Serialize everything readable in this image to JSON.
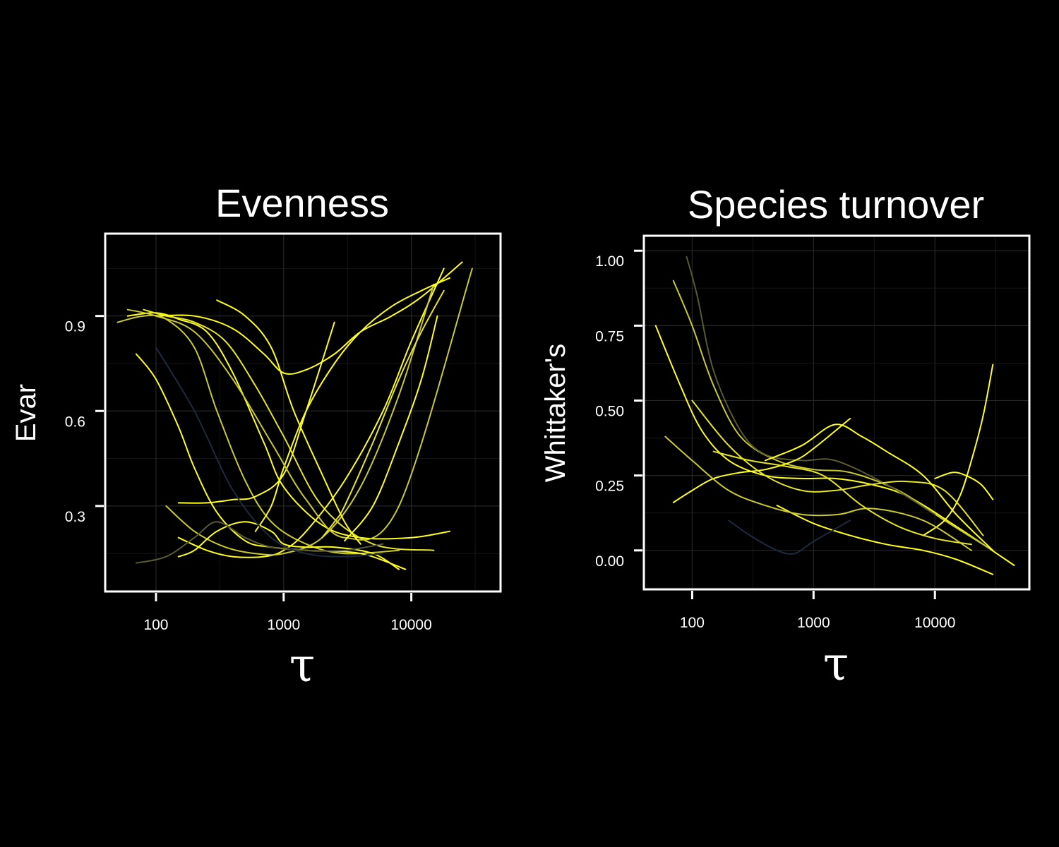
{
  "palette": {
    "background": "#000000",
    "foreground": "#ffffff",
    "curve_bright": "#ffff1a",
    "curve_olive": "#c9c932",
    "curve_dark": "#5a5a32",
    "curve_navy": "#1e2a3e"
  },
  "chart_data": [
    {
      "type": "line",
      "title": "Evenness",
      "xlabel": "τ",
      "ylabel": "Evar",
      "x_scale": "log10",
      "xlim": [
        40,
        50000
      ],
      "ylim": [
        0.03,
        1.16
      ],
      "x_ticks": [
        100,
        1000,
        10000
      ],
      "x_tick_labels": [
        "100",
        "1000",
        "10000"
      ],
      "y_ticks": [
        0.3,
        0.6,
        0.9
      ],
      "y_tick_labels": [
        "0.3",
        "0.6",
        "0.9"
      ],
      "grid": true,
      "legend": "none",
      "series_description": "~150 smoothed curves coloured on a navy-to-yellow gradient; estimated representative data shown",
      "series": [
        {
          "color": "#ffff1a",
          "x": [
            60,
            100,
            150,
            250,
            400,
            700,
            1000,
            2000,
            4000,
            10000,
            20000
          ],
          "y": [
            0.9,
            0.91,
            0.89,
            0.85,
            0.72,
            0.5,
            0.36,
            0.24,
            0.2,
            0.2,
            0.22
          ]
        },
        {
          "color": "#c9c932",
          "x": [
            50,
            80,
            120,
            200,
            300,
            500,
            800,
            1500,
            3000,
            8000
          ],
          "y": [
            0.88,
            0.9,
            0.89,
            0.8,
            0.6,
            0.38,
            0.25,
            0.18,
            0.15,
            0.16
          ]
        },
        {
          "color": "#ffff1a",
          "x": [
            70,
            100,
            150,
            200,
            300,
            500,
            800,
            1500,
            4000,
            9000
          ],
          "y": [
            0.78,
            0.7,
            0.55,
            0.42,
            0.28,
            0.19,
            0.17,
            0.16,
            0.15,
            0.1
          ]
        },
        {
          "color": "#e6e625",
          "x": [
            80,
            120,
            200,
            350,
            600,
            1000,
            2000,
            5000,
            15000
          ],
          "y": [
            0.92,
            0.9,
            0.88,
            0.82,
            0.68,
            0.52,
            0.3,
            0.18,
            0.16
          ]
        },
        {
          "color": "#ffff1a",
          "x": [
            100,
            200,
            400,
            700,
            1000,
            1500,
            2500,
            4000,
            7000,
            12000,
            25000
          ],
          "y": [
            0.9,
            0.9,
            0.86,
            0.78,
            0.72,
            0.73,
            0.78,
            0.85,
            0.9,
            0.96,
            1.07
          ]
        },
        {
          "color": "#ffff1a",
          "x": [
            150,
            250,
            400,
            700,
            1000,
            1500,
            3000,
            6000,
            10000,
            18000
          ],
          "y": [
            0.2,
            0.16,
            0.14,
            0.14,
            0.16,
            0.22,
            0.38,
            0.6,
            0.82,
            1.05
          ]
        },
        {
          "color": "#c9c932",
          "x": [
            120,
            200,
            350,
            600,
            1000,
            2000,
            4000,
            8000,
            15000
          ],
          "y": [
            0.3,
            0.22,
            0.17,
            0.15,
            0.15,
            0.2,
            0.36,
            0.65,
            1.0
          ]
        },
        {
          "color": "#ffff1a",
          "x": [
            150,
            200,
            300,
            500,
            800,
            1000,
            1500,
            2500,
            5000,
            8000
          ],
          "y": [
            0.14,
            0.16,
            0.22,
            0.25,
            0.22,
            0.18,
            0.17,
            0.17,
            0.15,
            0.1
          ]
        },
        {
          "color": "#5a5a32",
          "x": [
            70,
            120,
            200,
            300,
            500,
            800,
            1500,
            3000,
            6000
          ],
          "y": [
            0.12,
            0.14,
            0.2,
            0.25,
            0.2,
            0.17,
            0.16,
            0.16,
            0.18
          ]
        },
        {
          "color": "#ffff1a",
          "x": [
            600,
            800,
            1000,
            1500,
            2500,
            4000,
            7000,
            12000,
            20000
          ],
          "y": [
            0.22,
            0.3,
            0.42,
            0.6,
            0.75,
            0.85,
            0.93,
            0.98,
            1.02
          ]
        },
        {
          "color": "#e6e625",
          "x": [
            2000,
            2500,
            3000,
            5000,
            8000,
            12000,
            18000
          ],
          "y": [
            0.2,
            0.25,
            0.3,
            0.5,
            0.7,
            0.85,
            0.98
          ]
        },
        {
          "color": "#ffff1a",
          "x": [
            150,
            250,
            400,
            600,
            1000,
            1500,
            2500
          ],
          "y": [
            0.31,
            0.31,
            0.32,
            0.33,
            0.4,
            0.6,
            0.88
          ]
        },
        {
          "color": "#1e2a3e",
          "x": [
            100,
            200,
            400,
            800,
            1500,
            3000,
            6000
          ],
          "y": [
            0.8,
            0.6,
            0.35,
            0.2,
            0.15,
            0.14,
            0.15
          ]
        },
        {
          "color": "#c9c932",
          "x": [
            60,
            100,
            200,
            400,
            800,
            1500,
            3000,
            8000,
            30000
          ],
          "y": [
            0.92,
            0.9,
            0.85,
            0.7,
            0.5,
            0.32,
            0.2,
            0.3,
            1.05
          ]
        },
        {
          "color": "#ffff1a",
          "x": [
            300,
            500,
            800,
            1200,
            2000,
            3000,
            4000
          ],
          "y": [
            0.95,
            0.9,
            0.8,
            0.6,
            0.4,
            0.25,
            0.18
          ]
        },
        {
          "color": "#ffff1a",
          "x": [
            3000,
            5000,
            8000,
            12000,
            16000
          ],
          "y": [
            0.19,
            0.3,
            0.5,
            0.7,
            0.9
          ]
        }
      ]
    },
    {
      "type": "line",
      "title": "Species turnover",
      "xlabel": "τ",
      "ylabel": "Whittaker's",
      "x_scale": "log10",
      "xlim": [
        40,
        60000
      ],
      "ylim": [
        -0.13,
        1.05
      ],
      "x_ticks": [
        100,
        1000,
        10000
      ],
      "x_tick_labels": [
        "100",
        "1000",
        "10000"
      ],
      "y_ticks": [
        0.0,
        0.25,
        0.5,
        0.75,
        1.0
      ],
      "y_tick_labels": [
        "0.00",
        "0.25",
        "0.50",
        "0.75",
        "1.00"
      ],
      "grid": true,
      "legend": "none",
      "series_description": "~150 smoothed curves coloured on a navy-to-yellow gradient; estimated representative data shown",
      "series": [
        {
          "color": "#ffff1a",
          "x": [
            50,
            80,
            120,
            200,
            400,
            800,
            1500,
            3000,
            6000,
            15000,
            45000
          ],
          "y": [
            0.75,
            0.55,
            0.4,
            0.3,
            0.25,
            0.24,
            0.24,
            0.22,
            0.18,
            0.08,
            -0.05
          ]
        },
        {
          "color": "#c9c932",
          "x": [
            70,
            100,
            150,
            250,
            500,
            1000,
            2000,
            5000,
            12000,
            30000
          ],
          "y": [
            0.9,
            0.75,
            0.55,
            0.38,
            0.3,
            0.27,
            0.26,
            0.2,
            0.1,
            0.0
          ]
        },
        {
          "color": "#5a5a32",
          "x": [
            90,
            110,
            150,
            250,
            400,
            800,
            1500,
            4000,
            10000
          ],
          "y": [
            0.98,
            0.85,
            0.6,
            0.4,
            0.32,
            0.3,
            0.3,
            0.22,
            0.12
          ]
        },
        {
          "color": "#ffff1a",
          "x": [
            70,
            100,
            150,
            250,
            400,
            700,
            1000,
            2000
          ],
          "y": [
            0.16,
            0.2,
            0.24,
            0.26,
            0.27,
            0.3,
            0.34,
            0.44
          ]
        },
        {
          "color": "#ffff1a",
          "x": [
            8000,
            12000,
            16000,
            20000,
            25000,
            30000
          ],
          "y": [
            0.05,
            0.1,
            0.18,
            0.3,
            0.45,
            0.62
          ]
        },
        {
          "color": "#ffff1a",
          "x": [
            500,
            1000,
            2000,
            4000,
            8000,
            15000,
            30000
          ],
          "y": [
            0.15,
            0.09,
            0.05,
            0.02,
            0.0,
            -0.03,
            -0.08
          ]
        },
        {
          "color": "#e6e625",
          "x": [
            100,
            200,
            400,
            800,
            1500,
            3000,
            6000,
            12000,
            25000
          ],
          "y": [
            0.5,
            0.35,
            0.25,
            0.2,
            0.2,
            0.22,
            0.23,
            0.2,
            0.05
          ]
        },
        {
          "color": "#1e2a3e",
          "x": [
            200,
            300,
            500,
            700,
            1000,
            2000
          ],
          "y": [
            0.1,
            0.05,
            0.0,
            -0.01,
            0.03,
            0.1
          ]
        },
        {
          "color": "#c9c932",
          "x": [
            60,
            100,
            200,
            400,
            800,
            1600,
            3000,
            8000,
            20000
          ],
          "y": [
            0.38,
            0.3,
            0.2,
            0.15,
            0.12,
            0.12,
            0.14,
            0.1,
            0.0
          ]
        },
        {
          "color": "#ffff1a",
          "x": [
            400,
            800,
            1500,
            2500,
            4000,
            8000,
            15000,
            30000
          ],
          "y": [
            0.3,
            0.35,
            0.42,
            0.38,
            0.33,
            0.25,
            0.12,
            0.0
          ]
        },
        {
          "color": "#e6e625",
          "x": [
            150,
            300,
            600,
            1200,
            2500,
            5000,
            10000,
            20000
          ],
          "y": [
            0.33,
            0.3,
            0.28,
            0.25,
            0.15,
            0.08,
            0.04,
            0.02
          ]
        },
        {
          "color": "#ffff1a",
          "x": [
            10000,
            14000,
            18000,
            24000,
            30000
          ],
          "y": [
            0.24,
            0.26,
            0.25,
            0.22,
            0.17
          ]
        }
      ]
    }
  ]
}
